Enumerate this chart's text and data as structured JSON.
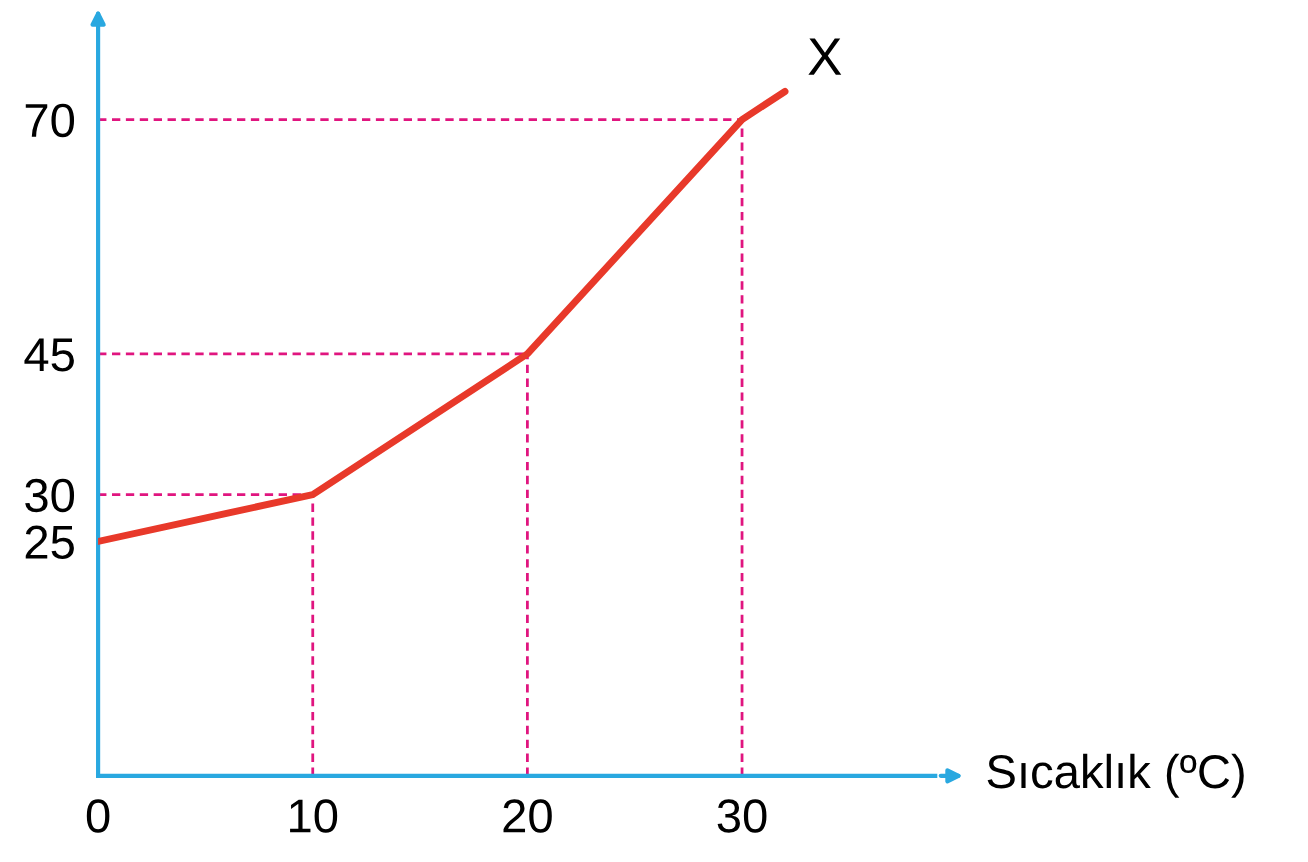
{
  "chart_data": {
    "type": "line",
    "xlabel": "Sıcaklık (ºC)",
    "x": [
      0,
      10,
      20,
      30,
      32
    ],
    "series": [
      {
        "color": "#e8392a",
        "values": [
          25,
          30,
          45,
          70,
          73
        ]
      }
    ],
    "xlim": [
      0,
      39
    ],
    "ylim": [
      0,
      80
    ],
    "xticks": [
      0,
      10,
      20,
      30
    ],
    "yticks": [
      25,
      30,
      45,
      70
    ],
    "annotations": [
      {
        "text": "X",
        "x": 32,
        "y": 73
      }
    ],
    "ref_lines": [
      {
        "axis": "x",
        "value": 10,
        "color": "#e0157f",
        "line_style": "dashed"
      },
      {
        "axis": "x",
        "value": 20,
        "color": "#e0157f",
        "line_style": "dashed"
      },
      {
        "axis": "x",
        "value": 30,
        "color": "#e0157f",
        "line_style": "dashed"
      },
      {
        "axis": "y",
        "value": 30,
        "color": "#e0157f",
        "line_style": "dashed"
      },
      {
        "axis": "y",
        "value": 45,
        "color": "#e0157f",
        "line_style": "dashed"
      },
      {
        "axis": "y",
        "value": 70,
        "color": "#e0157f",
        "line_style": "dashed"
      }
    ],
    "grid": false,
    "legend": false,
    "marker": "none",
    "line_style": "solid"
  }
}
